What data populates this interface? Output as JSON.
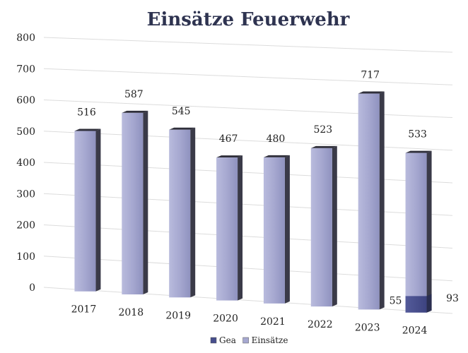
{
  "chart_data": {
    "type": "bar",
    "title": "Einsätze Feuerwehr",
    "categories": [
      "2017",
      "2018",
      "2019",
      "2020",
      "2021",
      "2022",
      "2023",
      "2024"
    ],
    "series": [
      {
        "name": "Gea",
        "values": [
          null,
          null,
          null,
          null,
          null,
          null,
          null,
          55
        ]
      },
      {
        "name": "Einsätze",
        "values": [
          516,
          587,
          545,
          467,
          480,
          523,
          717,
          533
        ]
      }
    ],
    "extra_labels": [
      "93"
    ],
    "y_ticks": [
      "0",
      "100",
      "200",
      "300",
      "400",
      "500",
      "600",
      "700",
      "800"
    ],
    "ylim": [
      0,
      800
    ],
    "grid": true,
    "style": "3d",
    "legend_position": "bottom",
    "colors": {
      "einsaetze_front": "#a6a8d0",
      "einsaetze_side": "#3a3a48",
      "gea_front": "#474e8c",
      "gea_side": "#2a2e50",
      "grid": "#dcdcdc",
      "title": "#2e3350"
    }
  }
}
